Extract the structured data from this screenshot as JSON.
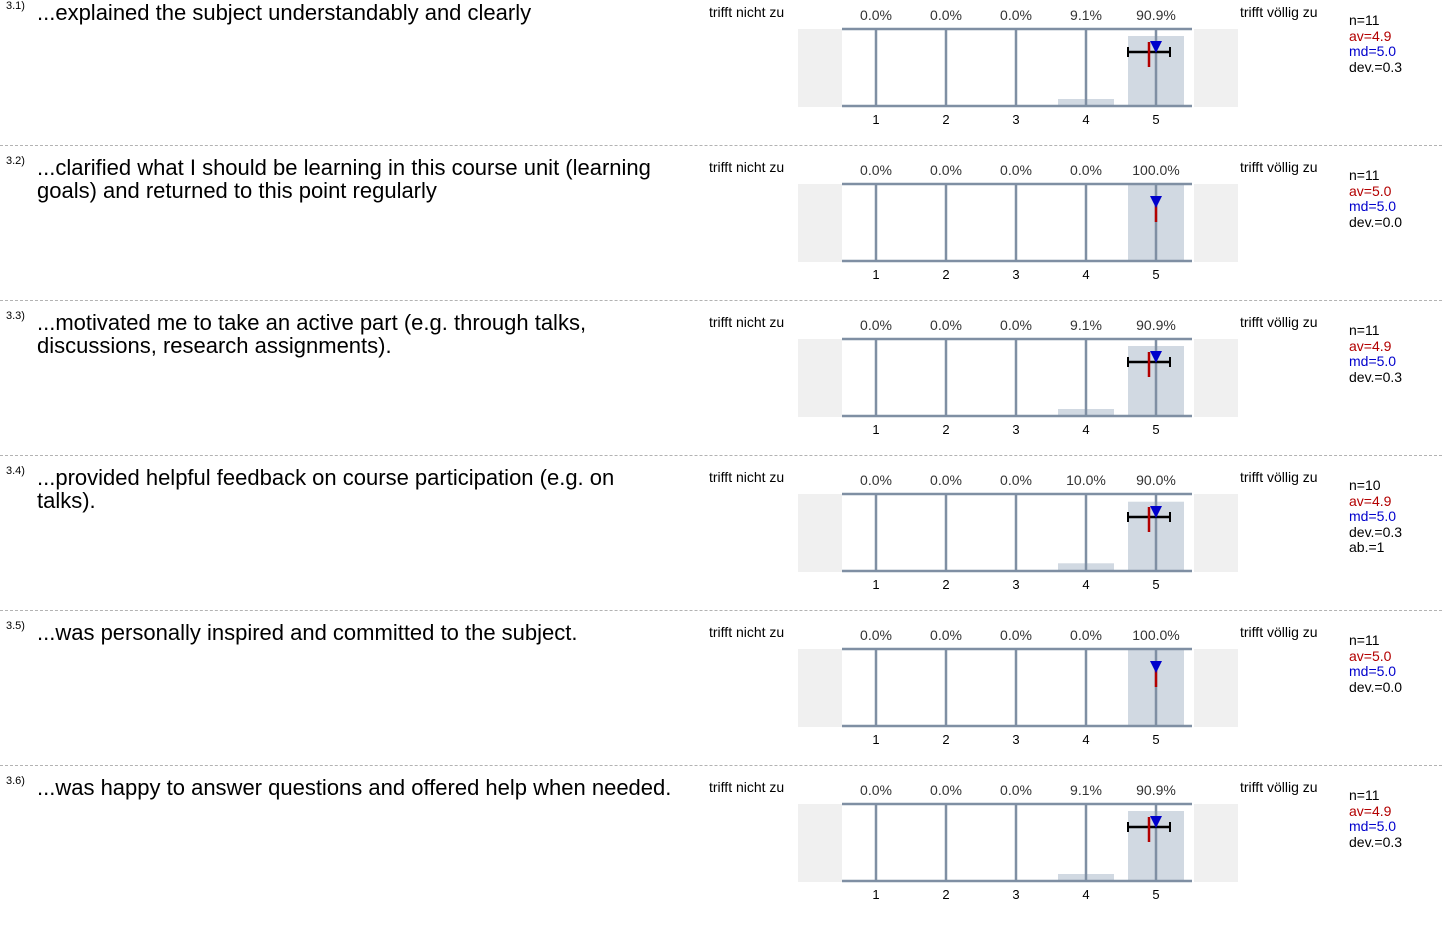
{
  "chart_data": [
    {
      "type": "bar",
      "number": "3.1)",
      "question": "...explained the subject understandably and clearly",
      "left_label": "trifft nicht zu",
      "right_label": "trifft völlig zu",
      "categories": [
        "1",
        "2",
        "3",
        "4",
        "5"
      ],
      "value_labels": [
        "0.0%",
        "0.0%",
        "0.0%",
        "9.1%",
        "90.9%"
      ],
      "values": [
        0.0,
        0.0,
        0.0,
        9.1,
        90.9
      ],
      "ylim": [
        0,
        100
      ],
      "mean": 4.9,
      "median": 5.0,
      "deviation": 0.3,
      "stats": [
        "n=11",
        "av=4.9",
        "md=5.0",
        "dev.=0.3"
      ]
    },
    {
      "type": "bar",
      "number": "3.2)",
      "question": "...clarified what I should be learning in this course unit (learning goals) and returned to this point regularly",
      "left_label": "trifft nicht zu",
      "right_label": "trifft völlig zu",
      "categories": [
        "1",
        "2",
        "3",
        "4",
        "5"
      ],
      "value_labels": [
        "0.0%",
        "0.0%",
        "0.0%",
        "0.0%",
        "100.0%"
      ],
      "values": [
        0.0,
        0.0,
        0.0,
        0.0,
        100.0
      ],
      "ylim": [
        0,
        100
      ],
      "mean": 5.0,
      "median": 5.0,
      "deviation": 0.0,
      "stats": [
        "n=11",
        "av=5.0",
        "md=5.0",
        "dev.=0.0"
      ]
    },
    {
      "type": "bar",
      "number": "3.3)",
      "question": "...motivated me to take an active part (e.g. through talks, discussions, research assignments).",
      "left_label": "trifft nicht zu",
      "right_label": "trifft völlig zu",
      "categories": [
        "1",
        "2",
        "3",
        "4",
        "5"
      ],
      "value_labels": [
        "0.0%",
        "0.0%",
        "0.0%",
        "9.1%",
        "90.9%"
      ],
      "values": [
        0.0,
        0.0,
        0.0,
        9.1,
        90.9
      ],
      "ylim": [
        0,
        100
      ],
      "mean": 4.9,
      "median": 5.0,
      "deviation": 0.3,
      "stats": [
        "n=11",
        "av=4.9",
        "md=5.0",
        "dev.=0.3"
      ]
    },
    {
      "type": "bar",
      "number": "3.4)",
      "question": "...provided helpful feedback on course participation (e.g. on talks).",
      "left_label": "trifft nicht zu",
      "right_label": "trifft völlig zu",
      "categories": [
        "1",
        "2",
        "3",
        "4",
        "5"
      ],
      "value_labels": [
        "0.0%",
        "0.0%",
        "0.0%",
        "10.0%",
        "90.0%"
      ],
      "values": [
        0.0,
        0.0,
        0.0,
        10.0,
        90.0
      ],
      "ylim": [
        0,
        100
      ],
      "mean": 4.9,
      "median": 5.0,
      "deviation": 0.3,
      "stats": [
        "n=10",
        "av=4.9",
        "md=5.0",
        "dev.=0.3",
        "ab.=1"
      ]
    },
    {
      "type": "bar",
      "number": "3.5)",
      "question": "...was personally inspired and committed to the subject.",
      "left_label": "trifft nicht zu",
      "right_label": "trifft völlig zu",
      "categories": [
        "1",
        "2",
        "3",
        "4",
        "5"
      ],
      "value_labels": [
        "0.0%",
        "0.0%",
        "0.0%",
        "0.0%",
        "100.0%"
      ],
      "values": [
        0.0,
        0.0,
        0.0,
        0.0,
        100.0
      ],
      "ylim": [
        0,
        100
      ],
      "mean": 5.0,
      "median": 5.0,
      "deviation": 0.0,
      "stats": [
        "n=11",
        "av=5.0",
        "md=5.0",
        "dev.=0.0"
      ]
    },
    {
      "type": "bar",
      "number": "3.6)",
      "question": "...was happy to answer questions and offered help when needed.",
      "left_label": "trifft nicht zu",
      "right_label": "trifft völlig zu",
      "categories": [
        "1",
        "2",
        "3",
        "4",
        "5"
      ],
      "value_labels": [
        "0.0%",
        "0.0%",
        "0.0%",
        "9.1%",
        "90.9%"
      ],
      "values": [
        0.0,
        0.0,
        0.0,
        9.1,
        90.9
      ],
      "ylim": [
        0,
        100
      ],
      "mean": 4.9,
      "median": 5.0,
      "deviation": 0.3,
      "stats": [
        "n=11",
        "av=4.9",
        "md=5.0",
        "dev.=0.3"
      ]
    }
  ],
  "colors": {
    "bar": "#d1d9e2",
    "axis": "#7f8fa3",
    "side_panel": "#f0f0f0",
    "mean": "#b30000",
    "median": "#0000cc",
    "deviation": "#000000",
    "separator": "#b3b3b3"
  }
}
